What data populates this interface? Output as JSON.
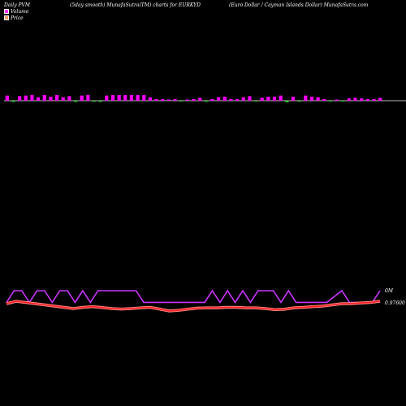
{
  "header": {
    "left": "Daily PVM",
    "middle": "(5day smooth) MunafaSutra(TM) charts for EURKYD",
    "right": "(Euro  Dollar / Cayman  Islands Dollar) MunafaSutra.com"
  },
  "legend": [
    {
      "label": "Volume",
      "color": "#ff33ff"
    },
    {
      "label": "Price",
      "color": "#ff9966"
    }
  ],
  "colors": {
    "background": "#000000",
    "volume_up": "#ff00ff",
    "volume_down": "#33cc33",
    "volume_baseline": "#bbbbbb",
    "pvm_line": "#cc33ff",
    "price_line": "#ff1a1a",
    "price_line_fill": "#ff8888"
  },
  "chart_data": {
    "type": "bar",
    "title": "Daily PVM",
    "volume_axis_label": "0M",
    "price_axis_label": "0.97600",
    "volume_series": {
      "name": "Volume",
      "values": [
        0.9,
        0.6,
        0.8,
        0.9,
        1.0,
        0.6,
        1.0,
        0.7,
        1.0,
        0.6,
        0.8,
        0.6,
        0.9,
        1.0,
        0.5,
        0.6,
        0.9,
        1.0,
        1.0,
        1.0,
        1.0,
        1.0,
        1.0,
        0.6,
        0.3,
        0.3,
        0.2,
        0.3,
        0.4,
        0.2,
        0.3,
        0.5,
        0.5,
        0.3,
        0.6,
        0.7,
        0.3,
        0.3,
        0.6,
        0.8,
        0.3,
        0.5,
        0.7,
        0.7,
        0.9,
        0.8,
        0.7,
        0.5,
        0.9,
        0.7,
        0.6,
        0.3,
        0.2,
        0.2,
        0.3,
        0.4,
        0.5,
        0.4,
        0.3,
        0.3,
        0.5
      ],
      "direction": [
        "up",
        "down",
        "up",
        "up",
        "up",
        "up",
        "up",
        "up",
        "up",
        "up",
        "up",
        "down",
        "up",
        "up",
        "down",
        "down",
        "up",
        "up",
        "up",
        "up",
        "up",
        "up",
        "up",
        "up",
        "up",
        "up",
        "up",
        "up",
        "down",
        "up",
        "up",
        "up",
        "down",
        "up",
        "up",
        "up",
        "up",
        "up",
        "up",
        "up",
        "down",
        "up",
        "up",
        "up",
        "up",
        "down",
        "up",
        "down",
        "up",
        "up",
        "up",
        "up",
        "down",
        "up",
        "down",
        "up",
        "up",
        "up",
        "up",
        "up",
        "up"
      ]
    },
    "pvm_series": {
      "name": "PVM",
      "values": [
        0.2,
        1,
        1,
        0.2,
        1,
        1,
        0.2,
        1,
        1,
        0.2,
        1,
        0.2,
        1,
        1,
        1,
        1,
        1,
        1,
        0.2,
        0.2,
        0.2,
        0.2,
        0.2,
        0.2,
        0.2,
        0.2,
        0.2,
        1,
        0.2,
        1,
        0.2,
        1,
        0.2,
        1,
        1,
        1,
        0.2,
        1,
        0.2,
        0.2,
        0.2,
        0.2,
        0.2,
        0.6,
        1,
        0.2,
        0.2,
        0.2,
        0.2,
        1
      ]
    },
    "price_series": {
      "name": "Price",
      "values": [
        0.976,
        0.977,
        0.9765,
        0.976,
        0.9755,
        0.975,
        0.9745,
        0.974,
        0.9745,
        0.9748,
        0.9744,
        0.974,
        0.9738,
        0.974,
        0.9743,
        0.9745,
        0.9738,
        0.973,
        0.9733,
        0.9738,
        0.9742,
        0.9743,
        0.9743,
        0.9745,
        0.9745,
        0.9743,
        0.9743,
        0.974,
        0.9736,
        0.9737,
        0.9743,
        0.9745,
        0.9748,
        0.975,
        0.9755,
        0.976,
        0.976,
        0.9763,
        0.9765,
        0.977
      ]
    }
  }
}
